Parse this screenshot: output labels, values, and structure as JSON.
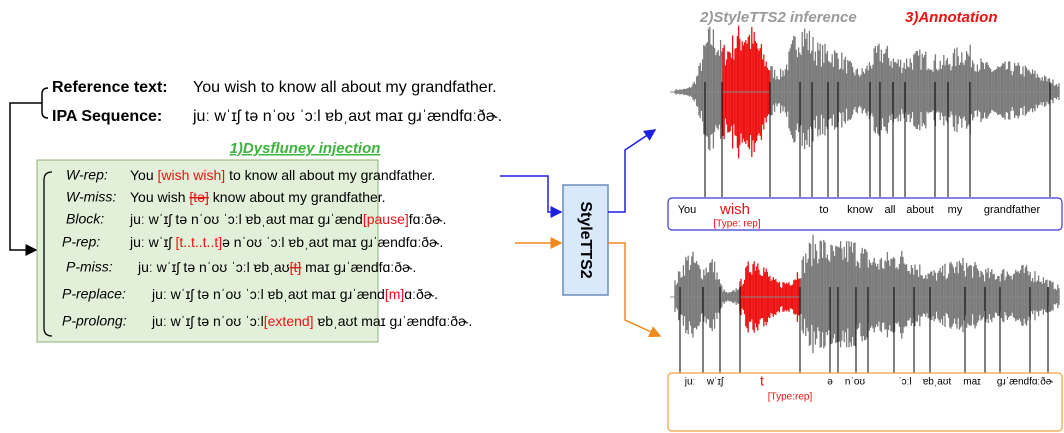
{
  "reference": {
    "label": "Reference text:",
    "text": "You wish to know all about my grandfather."
  },
  "ipa": {
    "label": "IPA Sequence:",
    "text": "juː wˈɪʃ tə nˈoʊ ˈɔːl ɐbˌaʊt maɪ ɡɹˈændfɑːðɚ."
  },
  "injection": {
    "title": "1)Dysfluney injection",
    "rows": [
      {
        "label": "W-rep:",
        "parts": [
          "You ",
          "[wish wish]",
          " to know all about my grandfather."
        ]
      },
      {
        "label": "W-miss:",
        "parts": [
          "You wish ",
          "[tə]",
          " know about my grandfather."
        ]
      },
      {
        "label": "Block:",
        "parts": [
          "juː wˈɪʃ tə nˈoʊ ˈɔːl ɐbˌaʊt maɪ ɡɹˈænd",
          "[pause]",
          "fɑːðɚ."
        ]
      },
      {
        "label": "P-rep:",
        "parts": [
          "juː wˈɪʃ ",
          "[t..t..t..t]",
          "ə nˈoʊ ˈɔːl ɐbˌaʊt maɪ ɡɹˈændfɑːðɚ."
        ]
      },
      {
        "label": "P-miss:",
        "parts": [
          "juː wˈɪʃ tə nˈoʊ ˈɔːl ɐbˌaʊ",
          "[t]",
          " maɪ ɡɹˈændfɑːðɚ."
        ]
      },
      {
        "label": "P-replace:",
        "parts": [
          "juː wˈɪʃ tə nˈoʊ ˈɔːl ɐbˌaʊt maɪ ɡɹˈænd",
          "[m]",
          "ɑːðɚ."
        ]
      },
      {
        "label": "P-prolong:",
        "parts": [
          "juː wˈɪʃ tə nˈoʊ ˈɔːl",
          "[extend]",
          " ɐbˌaʊt maɪ ɡɹˈændfɑːðɚ."
        ]
      }
    ]
  },
  "model": "StyleTTS2",
  "inference_title": "2)StyleTTS2 inference",
  "annotation_title": "3)Annotation",
  "word_annotation": {
    "tokens": [
      "You",
      "wish",
      "to",
      "know",
      "all",
      "about",
      "my",
      "grandfather"
    ],
    "type": "[Type: rep]"
  },
  "phoneme_annotation": {
    "tokens": [
      "juː",
      "wˈɪʃ",
      "t",
      "ə",
      "nˈoʊ",
      "ˈɔːl",
      "ɐbˌaʊt",
      "maɪ",
      "ɡɹˈændfɑːðɚ"
    ],
    "type": "[Type:rep]"
  }
}
